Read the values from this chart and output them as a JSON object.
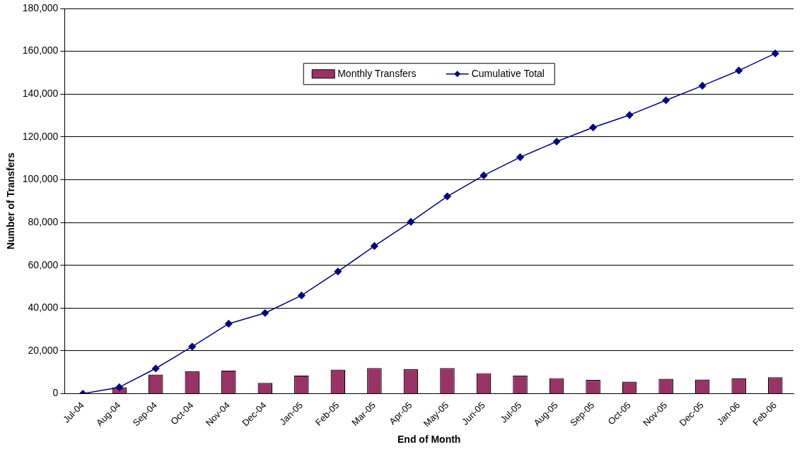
{
  "chart_data": {
    "type": "bar",
    "xlabel": "End of Month",
    "ylabel": "Number of Transfers",
    "categories": [
      "Jul-04",
      "Aug-04",
      "Sep-04",
      "Oct-04",
      "Nov-04",
      "Dec-04",
      "Jan-05",
      "Feb-05",
      "Mar-05",
      "Apr-05",
      "May-05",
      "Jun-05",
      "Jul-05",
      "Aug-05",
      "Sep-05",
      "Oct-05",
      "Nov-05",
      "Dec-05",
      "Jan-06",
      "Feb-06"
    ],
    "series": [
      {
        "name": "Monthly Transfers",
        "color": "#993366",
        "values": [
          0,
          3000,
          8900,
          10400,
          10800,
          5000,
          8500,
          11200,
          12000,
          11400,
          12000,
          9600,
          8400,
          7300,
          6400,
          5600,
          6900,
          6600,
          7100,
          7700
        ]
      },
      {
        "name": "Cumulative Total",
        "type": "line",
        "color": "#000080",
        "marker": "diamond",
        "values": [
          0,
          3000,
          11800,
          22000,
          32700,
          37700,
          45900,
          57100,
          69000,
          80300,
          92200,
          102000,
          110500,
          117800,
          124400,
          130200,
          137100,
          143900,
          151000,
          159000
        ]
      }
    ],
    "ylim": [
      0,
      180000
    ],
    "yticks": [
      {
        "value": 0,
        "label": "0"
      },
      {
        "value": 20000,
        "label": "20,000"
      },
      {
        "value": 40000,
        "label": "40,000"
      },
      {
        "value": 60000,
        "label": "60,000"
      },
      {
        "value": 80000,
        "label": "80,000"
      },
      {
        "value": 100000,
        "label": "100,000"
      },
      {
        "value": 120000,
        "label": "120,000"
      },
      {
        "value": 140000,
        "label": "140,000"
      },
      {
        "value": 160000,
        "label": "160,000"
      },
      {
        "value": 180000,
        "label": "180,000"
      }
    ],
    "grid": "y",
    "legend": "top"
  }
}
